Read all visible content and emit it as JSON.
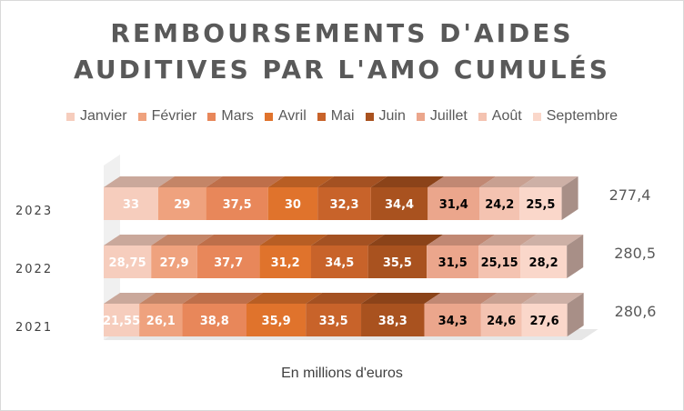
{
  "chart_data": {
    "type": "bar",
    "orientation": "horizontal",
    "stacked": true,
    "three_d": true,
    "title_lines": [
      "REMBOURSEMENTS D'AIDES",
      "AUDITIVES PAR L'AMO CUMULÉS"
    ],
    "note": "En millions d'euros",
    "legend_position": "top",
    "categories": [
      "2023",
      "2022",
      "2021"
    ],
    "series": [
      {
        "name": "Janvier",
        "color": "#f6cdbd",
        "label_color": "#ffffff",
        "labels": [
          "33",
          "28,75",
          "21,55"
        ],
        "values": [
          33,
          28.75,
          21.55
        ]
      },
      {
        "name": "Février",
        "color": "#efa27e",
        "label_color": "#ffffff",
        "labels": [
          "29",
          "27,9",
          "26,1"
        ],
        "values": [
          29,
          27.9,
          26.1
        ]
      },
      {
        "name": "Mars",
        "color": "#e8875a",
        "label_color": "#ffffff",
        "labels": [
          "37,5",
          "37,7",
          "38,8"
        ],
        "values": [
          37.5,
          37.7,
          38.8
        ]
      },
      {
        "name": "Avril",
        "color": "#e0732c",
        "label_color": "#ffffff",
        "labels": [
          "30",
          "31,2",
          "35,9"
        ],
        "values": [
          30,
          31.2,
          35.9
        ]
      },
      {
        "name": "Mai",
        "color": "#c8632a",
        "label_color": "#ffffff",
        "labels": [
          "32,3",
          "34,5",
          "33,5"
        ],
        "values": [
          32.3,
          34.5,
          33.5
        ]
      },
      {
        "name": "Juin",
        "color": "#a9521f",
        "label_color": "#ffffff",
        "labels": [
          "34,4",
          "35,5",
          "38,3"
        ],
        "values": [
          34.4,
          35.5,
          38.3
        ]
      },
      {
        "name": "Juillet",
        "color": "#eba68c",
        "label_color": "#000000",
        "labels": [
          "31,4",
          "31,5",
          "34,3"
        ],
        "values": [
          31.4,
          31.5,
          34.3
        ]
      },
      {
        "name": "Août",
        "color": "#f4c3b1",
        "label_color": "#000000",
        "labels": [
          "24,2",
          "25,15",
          "24,6"
        ],
        "values": [
          24.2,
          25.15,
          24.6
        ]
      },
      {
        "name": "Septembre",
        "color": "#fad7ca",
        "label_color": "#000000",
        "labels": [
          "25,5",
          "28,2",
          "27,6"
        ],
        "values": [
          25.5,
          28.2,
          27.6
        ]
      }
    ],
    "totals": [
      "277,4",
      "280,5",
      "280,6"
    ],
    "total_values": [
      277.4,
      280.5,
      280.6
    ],
    "wall_color": "#f0f0f0",
    "floor_color": "#e7e7e7"
  }
}
